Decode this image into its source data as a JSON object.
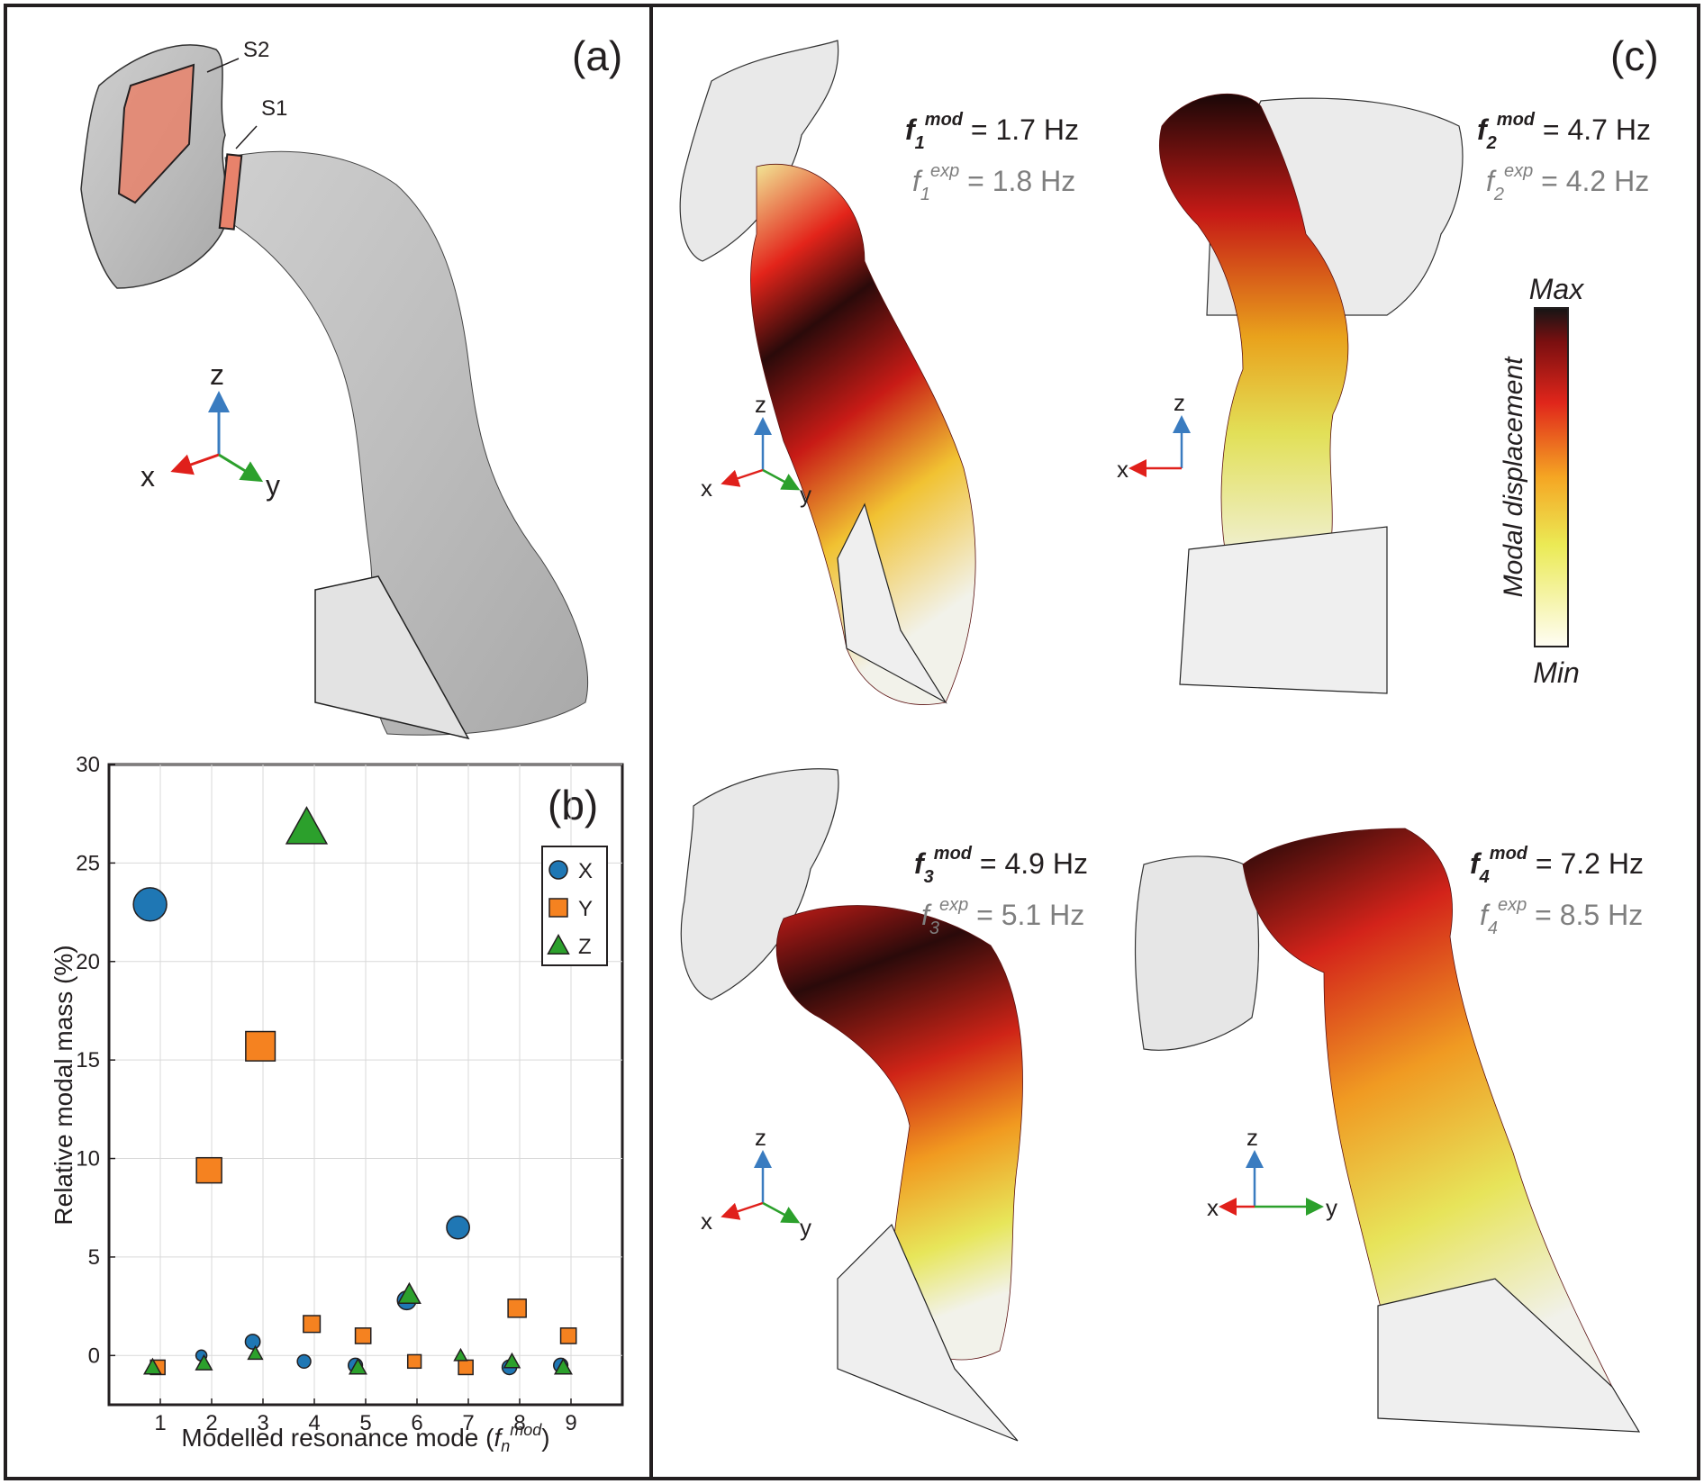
{
  "panels": {
    "a": {
      "label": "(a)",
      "surfaces": [
        "S2",
        "S1"
      ],
      "axes": {
        "z": "z",
        "x": "x",
        "y": "y"
      }
    },
    "b": {
      "label": "(b)"
    },
    "c": {
      "label": "(c)",
      "modes": [
        {
          "f": "f",
          "sub": "1",
          "sup_mod": "mod",
          "sup_exp": "exp",
          "mod_value": " = 1.7 Hz",
          "exp_value": " = 1.8 Hz",
          "axes": {
            "z": "z",
            "x": "x",
            "y": "y"
          }
        },
        {
          "f": "f",
          "sub": "2",
          "sup_mod": "mod",
          "sup_exp": "exp",
          "mod_value": " = 4.7 Hz",
          "exp_value": " = 4.2 Hz",
          "axes": {
            "z": "z",
            "x": "x"
          }
        },
        {
          "f": "f",
          "sub": "3",
          "sup_mod": "mod",
          "sup_exp": "exp",
          "mod_value": " = 4.9 Hz",
          "exp_value": " = 5.1 Hz",
          "axes": {
            "z": "z",
            "x": "x",
            "y": "y"
          }
        },
        {
          "f": "f",
          "sub": "4",
          "sup_mod": "mod",
          "sup_exp": "exp",
          "mod_value": " = 7.2 Hz",
          "exp_value": " = 8.5 Hz",
          "axes": {
            "z": "z",
            "x": "x",
            "y": "y"
          }
        }
      ],
      "colorbar": {
        "max": "Max",
        "min": "Min",
        "title": "Modal displacement"
      }
    }
  },
  "colors": {
    "x": "#1f77b4",
    "y": "#f58220",
    "z": "#2ca02c",
    "axis_x": "#e0201b",
    "axis_y": "#2ca02c",
    "axis_z": "#3a7cc0"
  },
  "chart_data": {
    "type": "scatter",
    "xlabel_main": "Modelled resonance mode (",
    "xlabel_f": "f",
    "xlabel_sub": "n",
    "xlabel_sup": "mod",
    "xlabel_close": ")",
    "ylabel": "Relative modal mass (%)",
    "xlim": [
      0,
      10
    ],
    "ylim": [
      -2.5,
      30
    ],
    "x_ticks": [
      1,
      2,
      3,
      4,
      5,
      6,
      7,
      8,
      9
    ],
    "y_ticks": [
      0,
      5,
      10,
      15,
      20,
      25,
      30
    ],
    "grid": true,
    "legend_position": "right",
    "series": [
      {
        "name": "X",
        "marker": "circle",
        "color": "#1f77b4",
        "x": [
          0.8,
          1.8,
          2.8,
          3.8,
          4.8,
          5.8,
          6.8,
          7.8,
          8.8
        ],
        "y": [
          22.9,
          0.0,
          0.7,
          -0.3,
          -0.5,
          2.8,
          6.5,
          -0.6,
          -0.5
        ],
        "size": [
          22.9,
          0.0,
          0.7,
          0.3,
          0.5,
          2.8,
          6.5,
          0.6,
          0.5
        ]
      },
      {
        "name": "Y",
        "marker": "square",
        "color": "#f58220",
        "x": [
          0.8,
          1.8,
          2.8,
          3.8,
          4.8,
          5.8,
          6.8,
          7.8,
          8.8
        ],
        "y": [
          -0.6,
          9.4,
          15.7,
          1.6,
          1.0,
          -0.3,
          -0.6,
          2.4,
          1.0
        ],
        "size": [
          0.6,
          9.4,
          15.7,
          1.6,
          1.0,
          0.3,
          0.6,
          2.4,
          1.0
        ]
      },
      {
        "name": "Z",
        "marker": "triangle",
        "color": "#2ca02c",
        "x": [
          0.8,
          1.8,
          2.8,
          3.8,
          4.8,
          5.8,
          6.8,
          7.8,
          8.8
        ],
        "y": [
          -0.6,
          -0.4,
          0.1,
          26.8,
          -0.6,
          3.1,
          0.0,
          -0.3,
          -0.6
        ],
        "size": [
          0.6,
          0.4,
          0.1,
          26.8,
          0.6,
          3.1,
          0.0,
          0.3,
          0.6
        ]
      }
    ]
  }
}
